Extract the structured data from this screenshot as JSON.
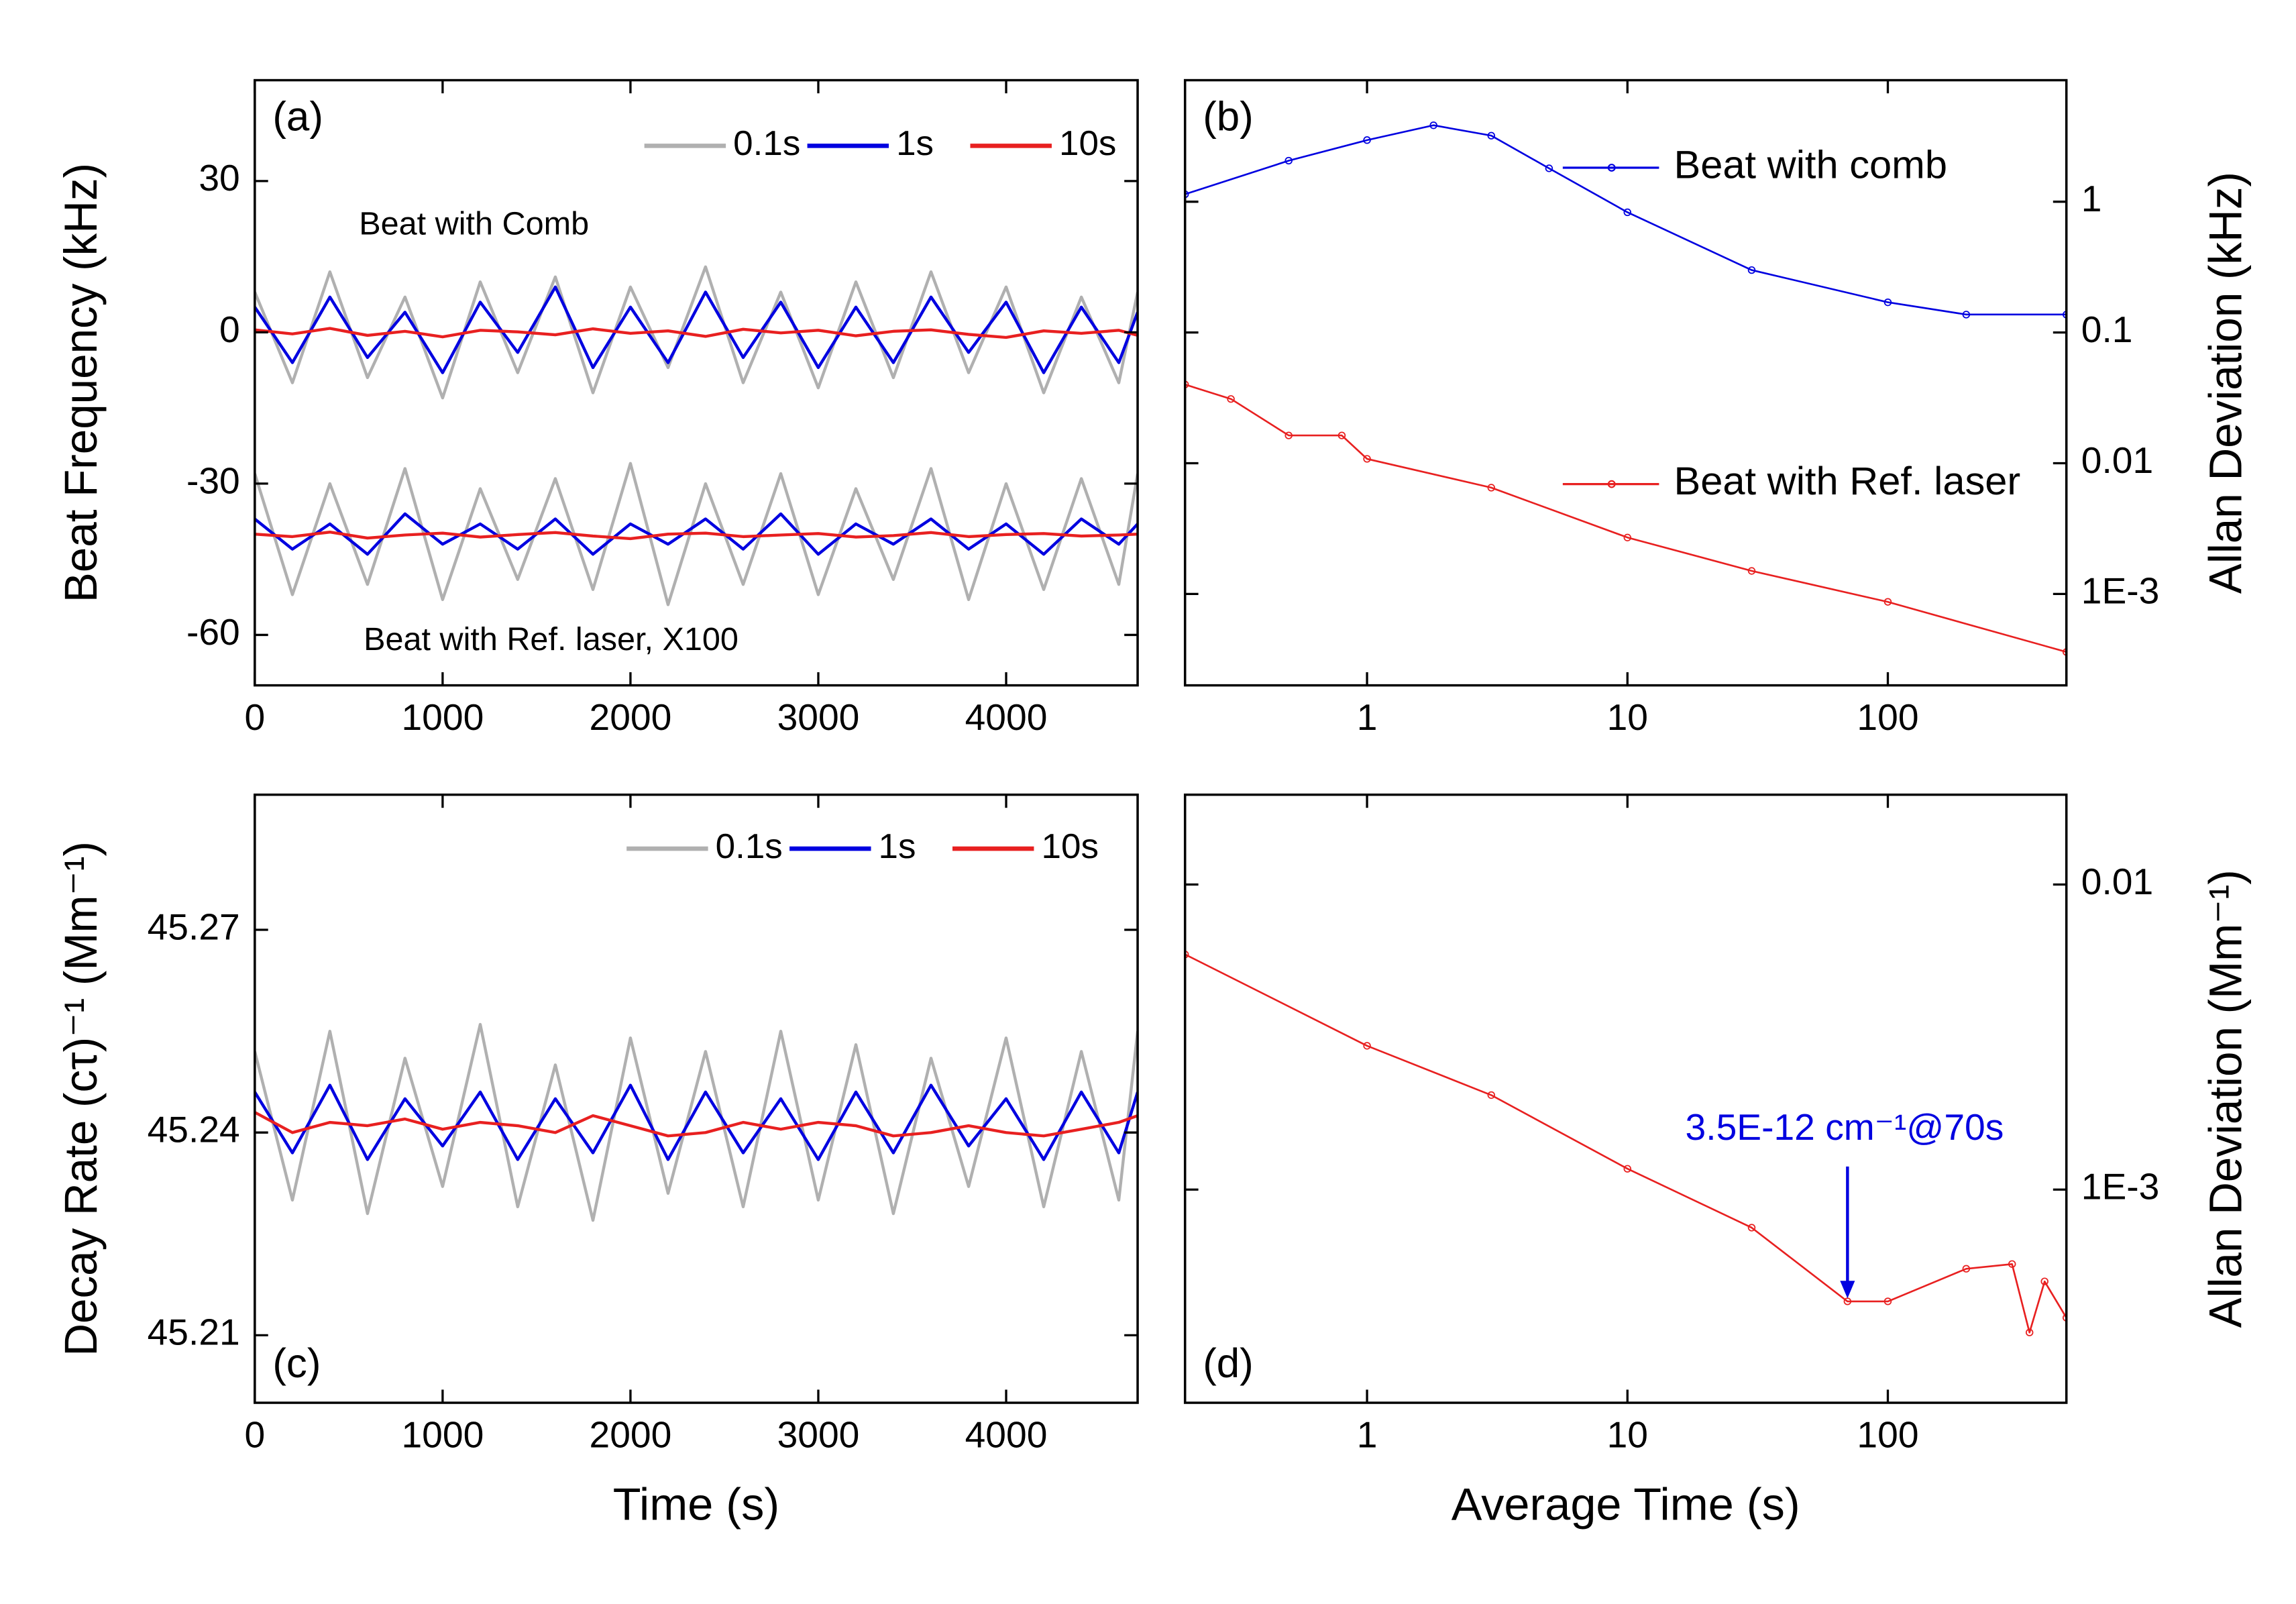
{
  "chart_data": [
    {
      "type": "line",
      "panel_label": "(a)",
      "ylabel": "Beat Frequency (kHz)",
      "ylabel_side": "left",
      "xlim": [
        0,
        4700
      ],
      "xticks": [
        0,
        1000,
        2000,
        3000,
        4000
      ],
      "ylim": [
        -70,
        50
      ],
      "yticks": [
        30,
        0,
        -30,
        -60
      ],
      "x": [
        0,
        200,
        400,
        600,
        800,
        1000,
        1200,
        1400,
        1600,
        1800,
        2000,
        2200,
        2400,
        2600,
        2800,
        3000,
        3200,
        3400,
        3600,
        3800,
        4000,
        4200,
        4400,
        4600,
        4700
      ],
      "annotations": [
        "Beat with Comb",
        "Beat with Ref. laser, X100"
      ],
      "series": [
        {
          "name": "0.1s",
          "color": "#b0b0b0",
          "values": [
            8,
            -10,
            12,
            -9,
            7,
            -13,
            10,
            -8,
            11,
            -12,
            9,
            -7,
            13,
            -10,
            8,
            -11,
            10,
            -9,
            12,
            -8,
            9,
            -12,
            7,
            -10,
            8
          ],
          "values_ref": [
            -28,
            -52,
            -30,
            -50,
            -27,
            -53,
            -31,
            -49,
            -29,
            -51,
            -26,
            -54,
            -30,
            -50,
            -28,
            -52,
            -31,
            -49,
            -27,
            -53,
            -30,
            -51,
            -29,
            -50,
            -28
          ]
        },
        {
          "name": "1s",
          "color": "#0000e0",
          "values": [
            5,
            -6,
            7,
            -5,
            4,
            -8,
            6,
            -4,
            9,
            -7,
            5,
            -6,
            8,
            -5,
            6,
            -7,
            5,
            -6,
            7,
            -4,
            6,
            -8,
            5,
            -6,
            4
          ],
          "values_ref": [
            -37,
            -43,
            -38,
            -44,
            -36,
            -42,
            -38,
            -43,
            -37,
            -44,
            -38,
            -42,
            -37,
            -43,
            -36,
            -44,
            -38,
            -42,
            -37,
            -43,
            -38,
            -44,
            -37,
            -42,
            -38
          ]
        },
        {
          "name": "10s",
          "color": "#e82020",
          "values": [
            0.5,
            -0.3,
            0.8,
            -0.6,
            0.2,
            -0.9,
            0.4,
            0.1,
            -0.5,
            0.7,
            -0.2,
            0.3,
            -0.8,
            0.6,
            -0.1,
            0.4,
            -0.7,
            0.2,
            0.5,
            -0.4,
            -1.0,
            0.3,
            -0.2,
            0.4,
            -0.6
          ],
          "values_ref": [
            -40,
            -40.5,
            -39.6,
            -40.8,
            -40.2,
            -39.8,
            -40.6,
            -40.1,
            -39.7,
            -40.4,
            -40.9,
            -40,
            -39.8,
            -40.5,
            -40.2,
            -39.9,
            -40.6,
            -40.3,
            -39.7,
            -40.5,
            -40.1,
            -39.9,
            -40.4,
            -40.2,
            -40
          ]
        }
      ]
    },
    {
      "type": "line",
      "panel_label": "(b)",
      "ylabel": "Allan Deviation (kHz)",
      "ylabel_side": "right",
      "xlog": true,
      "ylog": true,
      "xlim": [
        0.2,
        485
      ],
      "xticks": [
        1,
        10,
        100
      ],
      "ylim": [
        0.0002,
        8.5
      ],
      "yticks": [
        1,
        0.1,
        0.01,
        {
          "value": 0.001,
          "label": "1E-3"
        }
      ],
      "series": [
        {
          "name": "Beat with comb",
          "color": "#0000e0",
          "x": [
            0.2,
            0.5,
            1,
            1.8,
            3,
            5,
            10,
            30,
            100,
            200,
            485
          ],
          "values": [
            1.14,
            2.06,
            2.96,
            3.84,
            3.2,
            1.8,
            0.83,
            0.3,
            0.17,
            0.137,
            0.137
          ]
        },
        {
          "name": "Beat with Ref. laser",
          "color": "#e82020",
          "x": [
            0.2,
            0.3,
            0.5,
            0.8,
            1,
            3,
            10,
            30,
            100,
            485
          ],
          "values": [
            0.04,
            0.031,
            0.0163,
            0.0163,
            0.0108,
            0.0065,
            0.0027,
            0.0015,
            0.00087,
            0.00036
          ]
        }
      ]
    },
    {
      "type": "line",
      "panel_label": "(c)",
      "ylabel": "Decay Rate (cτ)⁻¹ (Mm⁻¹)",
      "ylabel_side": "left",
      "xlabel": "Time (s)",
      "xlim": [
        0,
        4700
      ],
      "xticks": [
        0,
        1000,
        2000,
        3000,
        4000
      ],
      "ylim": [
        45.2,
        45.29
      ],
      "yticks": [
        45.27,
        45.24,
        45.21
      ],
      "x": [
        0,
        200,
        400,
        600,
        800,
        1000,
        1200,
        1400,
        1600,
        1800,
        2000,
        2200,
        2400,
        2600,
        2800,
        3000,
        3200,
        3400,
        3600,
        3800,
        4000,
        4200,
        4400,
        4600,
        4700
      ],
      "series": [
        {
          "name": "0.1s",
          "color": "#b0b0b0",
          "values": [
            45.252,
            45.23,
            45.255,
            45.228,
            45.251,
            45.232,
            45.256,
            45.229,
            45.25,
            45.227,
            45.254,
            45.231,
            45.252,
            45.229,
            45.255,
            45.23,
            45.253,
            45.228,
            45.251,
            45.232,
            45.254,
            45.229,
            45.252,
            45.23,
            45.255
          ]
        },
        {
          "name": "1s",
          "color": "#0000e0",
          "values": [
            45.246,
            45.237,
            45.247,
            45.236,
            45.245,
            45.238,
            45.246,
            45.236,
            45.245,
            45.237,
            45.247,
            45.236,
            45.246,
            45.237,
            45.245,
            45.236,
            45.246,
            45.237,
            45.247,
            45.238,
            45.245,
            45.236,
            45.246,
            45.237,
            45.246
          ]
        },
        {
          "name": "10s",
          "color": "#e82020",
          "values": [
            45.243,
            45.24,
            45.2415,
            45.241,
            45.242,
            45.2405,
            45.2415,
            45.241,
            45.24,
            45.2425,
            45.241,
            45.2395,
            45.24,
            45.2415,
            45.2405,
            45.2415,
            45.241,
            45.2395,
            45.24,
            45.241,
            45.24,
            45.2395,
            45.2405,
            45.2415,
            45.2425
          ]
        }
      ]
    },
    {
      "type": "line",
      "panel_label": "(d)",
      "ylabel": "Allan Deviation (Mm⁻¹)",
      "ylabel_side": "right",
      "xlabel": "Average Time (s)",
      "xlog": true,
      "ylog": true,
      "xlim": [
        0.2,
        485
      ],
      "xticks": [
        1,
        10,
        100
      ],
      "ylim": [
        0.0002,
        0.0197
      ],
      "yticks": [
        0.01,
        {
          "value": 0.001,
          "label": "1E-3"
        }
      ],
      "series": [
        {
          "color": "#e82020",
          "x": [
            0.2,
            1,
            3,
            10,
            30,
            70,
            100,
            200,
            300,
            350,
            400,
            485
          ],
          "values": [
            0.0059,
            0.00296,
            0.00204,
            0.00117,
            0.00075,
            0.00043,
            0.00043,
            0.00055,
            0.00057,
            0.00034,
            0.0005,
            0.00038
          ]
        }
      ],
      "annotation": {
        "text": "3.5E-12 cm⁻¹@70s",
        "color": "#0000e0",
        "x": 70,
        "y": 0.00044
      }
    }
  ]
}
